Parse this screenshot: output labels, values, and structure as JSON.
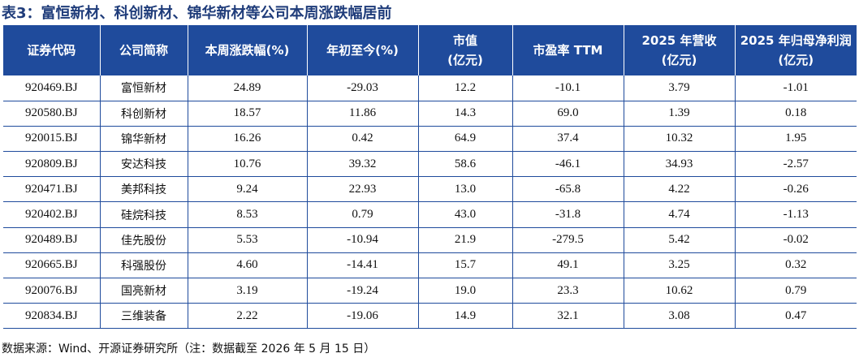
{
  "title": "表3：富恒新材、科创新材、锦华新材等公司本周涨跌幅居前",
  "headers": [
    {
      "l1": "证券代码",
      "l2": ""
    },
    {
      "l1": "公司简称",
      "l2": ""
    },
    {
      "l1": "本周涨跌幅(%)",
      "l2": ""
    },
    {
      "l1": "年初至今(%)",
      "l2": ""
    },
    {
      "l1": "市值",
      "l2": "(亿元)"
    },
    {
      "l1": "市盈率 TTM",
      "l2": ""
    },
    {
      "l1": "2025 年营收",
      "l2": "(亿元)"
    },
    {
      "l1": "2025 年归母净利润",
      "l2": "(亿元)"
    }
  ],
  "rows": [
    [
      "920469.BJ",
      "富恒新材",
      "24.89",
      "-29.03",
      "12.2",
      "-10.1",
      "3.79",
      "-1.01"
    ],
    [
      "920580.BJ",
      "科创新材",
      "18.57",
      "11.86",
      "14.3",
      "69.0",
      "1.39",
      "0.18"
    ],
    [
      "920015.BJ",
      "锦华新材",
      "16.26",
      "0.42",
      "64.9",
      "37.4",
      "10.32",
      "1.95"
    ],
    [
      "920809.BJ",
      "安达科技",
      "10.76",
      "39.32",
      "58.6",
      "-46.1",
      "34.93",
      "-2.57"
    ],
    [
      "920471.BJ",
      "美邦科技",
      "9.24",
      "22.93",
      "13.0",
      "-65.8",
      "4.22",
      "-0.26"
    ],
    [
      "920402.BJ",
      "硅烷科技",
      "8.53",
      "0.79",
      "43.0",
      "-31.8",
      "4.74",
      "-1.13"
    ],
    [
      "920489.BJ",
      "佳先股份",
      "5.53",
      "-10.94",
      "21.9",
      "-279.5",
      "5.42",
      "-0.02"
    ],
    [
      "920665.BJ",
      "科强股份",
      "4.60",
      "-14.41",
      "15.7",
      "49.1",
      "3.25",
      "0.32"
    ],
    [
      "920076.BJ",
      "国亮新材",
      "3.19",
      "-19.24",
      "19.0",
      "23.3",
      "10.62",
      "0.79"
    ],
    [
      "920834.BJ",
      "三维装备",
      "2.22",
      "-19.06",
      "14.9",
      "32.1",
      "3.08",
      "0.47"
    ]
  ],
  "source": "数据来源：Wind、开源证券研究所（注：数据截至 2026 年 5 月 15 日）",
  "colors": {
    "header_bg": "#1f4b9c",
    "title": "#1f3c7a",
    "grid": "#1f4b9c"
  }
}
